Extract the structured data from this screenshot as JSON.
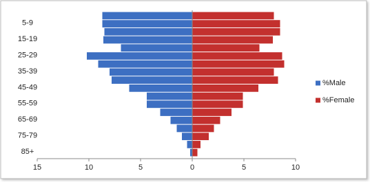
{
  "chart_data": {
    "type": "pyramid",
    "categories": [
      null,
      "5-9",
      null,
      "15-19",
      null,
      "25-29",
      null,
      "35-39",
      null,
      "45-49",
      null,
      "55-59",
      null,
      "65-69",
      null,
      "75-79",
      null,
      "85+"
    ],
    "series": [
      {
        "name": "%Male",
        "color": "#3d6fc2",
        "values": [
          -8.7,
          -8.7,
          -8.5,
          -8.6,
          -6.9,
          -10.2,
          -9.1,
          -8.0,
          -7.8,
          -6.1,
          -4.4,
          -4.4,
          -3.1,
          -2.1,
          -1.5,
          -1.0,
          -0.5,
          -0.2
        ]
      },
      {
        "name": "%Female",
        "color": "#c3302e",
        "values": [
          7.9,
          8.5,
          8.5,
          7.8,
          6.5,
          8.7,
          8.9,
          7.9,
          8.3,
          6.4,
          4.9,
          4.9,
          3.8,
          2.7,
          2.1,
          1.6,
          0.8,
          0.5
        ]
      }
    ],
    "xlim": [
      -15,
      10
    ],
    "xticks": [
      {
        "value": -15,
        "label": "15"
      },
      {
        "value": -10,
        "label": "10"
      },
      {
        "value": -5,
        "label": "5"
      },
      0,
      5,
      10
    ],
    "legend": "right"
  }
}
